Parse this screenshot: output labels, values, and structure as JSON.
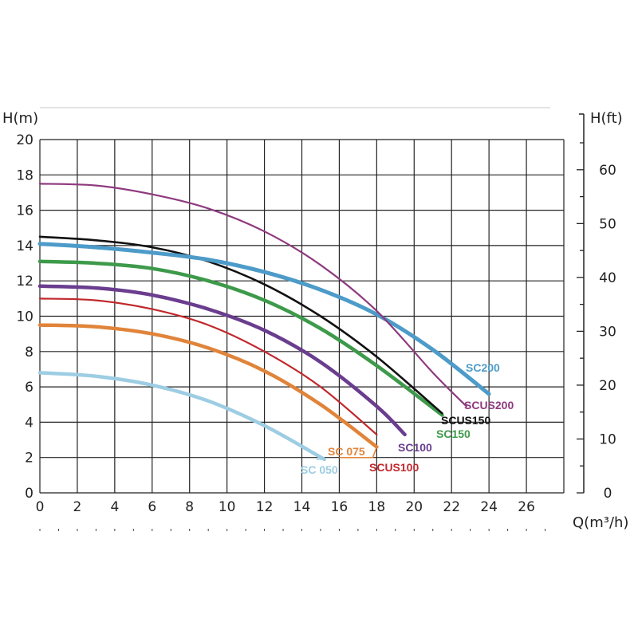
{
  "chart_data": {
    "type": "line",
    "title": "",
    "xlabel": "Q(m³/h)",
    "ylabel": "H(m)",
    "y2label": "H(ft)",
    "xlim": [
      0,
      28
    ],
    "ylim": [
      0,
      20
    ],
    "y2lim": [
      0,
      65.6
    ],
    "xticks": [
      0,
      2,
      4,
      6,
      8,
      10,
      12,
      14,
      16,
      18,
      20,
      22,
      24,
      26
    ],
    "yticks": [
      0,
      2,
      4,
      6,
      8,
      10,
      12,
      14,
      16,
      18,
      20
    ],
    "y2ticks": [
      0,
      10,
      20,
      30,
      40,
      50,
      60
    ],
    "grid": true,
    "legend": "labels at curve ends",
    "series": [
      {
        "name": "SC 050",
        "color": "#9dcde3",
        "x": [
          0,
          3,
          6,
          9,
          12,
          15.2
        ],
        "y": [
          6.8,
          6.6,
          6.1,
          5.2,
          3.8,
          1.9
        ],
        "label": "SC 050"
      },
      {
        "name": "SC 075",
        "color": "#e0843a",
        "x": [
          0,
          3,
          6,
          9,
          12,
          15,
          18
        ],
        "y": [
          9.5,
          9.4,
          9.0,
          8.2,
          6.9,
          5.0,
          2.6
        ],
        "label": "SC 075"
      },
      {
        "name": "SCUS100",
        "color": "#c0282c",
        "x": [
          0,
          3,
          6,
          9,
          12,
          15,
          18
        ],
        "y": [
          11.0,
          10.9,
          10.4,
          9.5,
          8.0,
          6.0,
          3.3
        ],
        "label": "SCUS100"
      },
      {
        "name": "SC100",
        "color": "#6a3d8f",
        "x": [
          0,
          3,
          6,
          9,
          12,
          15,
          18,
          19.5
        ],
        "y": [
          11.7,
          11.6,
          11.2,
          10.4,
          9.2,
          7.4,
          4.9,
          3.3
        ],
        "label": "SC100"
      },
      {
        "name": "SC150",
        "color": "#3d9a4a",
        "x": [
          0,
          3,
          6,
          9,
          12,
          15,
          18,
          21.5
        ],
        "y": [
          13.1,
          13.0,
          12.7,
          12.0,
          10.9,
          9.3,
          7.2,
          4.4
        ],
        "label": "SC150"
      },
      {
        "name": "SCUS150",
        "color": "#111111",
        "x": [
          0,
          3,
          6,
          9,
          12,
          15,
          18,
          21.5
        ],
        "y": [
          14.5,
          14.3,
          13.9,
          13.1,
          11.8,
          10.0,
          7.7,
          4.5
        ],
        "label": "SCUS150"
      },
      {
        "name": "SC200",
        "color": "#4d9bc9",
        "x": [
          0,
          3,
          6,
          9,
          12,
          15,
          18,
          21,
          24
        ],
        "y": [
          14.1,
          13.9,
          13.6,
          13.2,
          12.5,
          11.5,
          10.1,
          8.1,
          5.6
        ],
        "label": "SC200"
      },
      {
        "name": "SCUS200",
        "color": "#8e3a7e",
        "x": [
          0,
          3,
          6,
          9,
          12,
          15,
          18,
          21,
          22.8
        ],
        "y": [
          17.5,
          17.4,
          16.9,
          16.1,
          14.8,
          12.9,
          10.3,
          6.8,
          4.9
        ],
        "label": "SCUS200"
      }
    ]
  }
}
